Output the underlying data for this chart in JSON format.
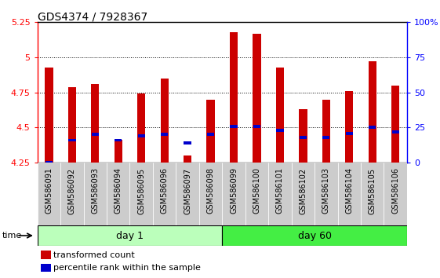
{
  "title": "GDS4374 / 7928367",
  "samples": [
    "GSM586091",
    "GSM586092",
    "GSM586093",
    "GSM586094",
    "GSM586095",
    "GSM586096",
    "GSM586097",
    "GSM586098",
    "GSM586099",
    "GSM586100",
    "GSM586101",
    "GSM586102",
    "GSM586103",
    "GSM586104",
    "GSM586105",
    "GSM586106"
  ],
  "transformed_count": [
    4.93,
    4.79,
    4.81,
    4.41,
    4.74,
    4.85,
    4.3,
    4.7,
    5.18,
    5.17,
    4.93,
    4.63,
    4.7,
    4.76,
    4.97,
    4.8
  ],
  "percentile_rank": [
    4.25,
    4.41,
    4.45,
    4.41,
    4.44,
    4.45,
    4.39,
    4.45,
    4.51,
    4.51,
    4.48,
    4.43,
    4.43,
    4.46,
    4.5,
    4.47
  ],
  "bar_bottom": 4.25,
  "red_color": "#cc0000",
  "blue_color": "#0000cc",
  "ylim_left": [
    4.25,
    5.25
  ],
  "ylim_right": [
    0,
    100
  ],
  "yticks_left": [
    4.25,
    4.5,
    4.75,
    5.0,
    5.25
  ],
  "yticks_right": [
    0,
    25,
    50,
    75,
    100
  ],
  "ytick_labels_left": [
    "4.25",
    "4.5",
    "4.75",
    "5",
    "5.25"
  ],
  "ytick_labels_right": [
    "0",
    "25",
    "50",
    "75",
    "100%"
  ],
  "day1_samples": 8,
  "day60_samples": 8,
  "day1_label": "day 1",
  "day60_label": "day 60",
  "day1_color": "#bbffbb",
  "day60_color": "#44ee44",
  "sample_bg_color": "#cccccc",
  "time_label": "time",
  "legend_red": "transformed count",
  "legend_blue": "percentile rank within the sample",
  "bar_width": 0.35,
  "grid_color": "black",
  "title_fontsize": 10,
  "label_fontsize": 7,
  "ytick_fontsize": 8
}
